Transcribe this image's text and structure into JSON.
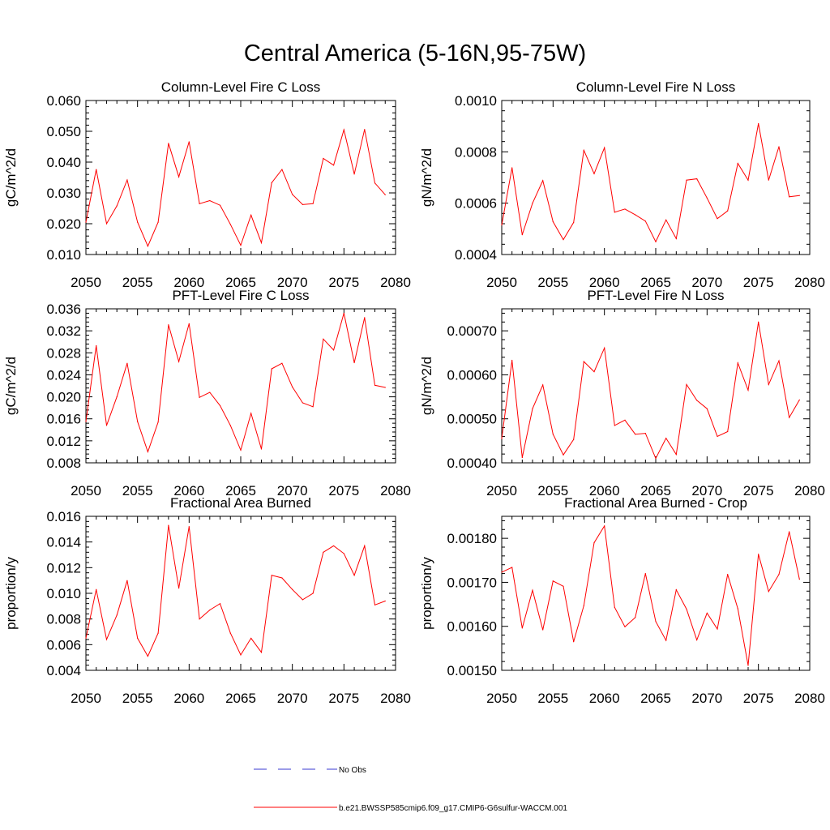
{
  "figure": {
    "title": "Central America (5-16N,95-75W)",
    "legend": [
      {
        "label": "No Obs",
        "color": "#3a3ad0",
        "style": "dashed"
      },
      {
        "label": "b.e21.BWSSP585cmip6.f09_g17.CMIP6-G6sulfur-WACCM.001",
        "color": "#ff0000",
        "style": "solid"
      }
    ]
  },
  "chart_data": [
    {
      "type": "line",
      "title": "Column-Level Fire C Loss",
      "ylabel": "gC/m^2/d",
      "xlim": [
        2050,
        2080
      ],
      "ylim": [
        0.01,
        0.06
      ],
      "xticks": [
        2050,
        2055,
        2060,
        2065,
        2070,
        2075,
        2080
      ],
      "yticks": [
        0.01,
        0.02,
        0.03,
        0.04,
        0.05,
        0.06
      ],
      "ytick_labels": [
        "0.010",
        "0.020",
        "0.030",
        "0.040",
        "0.050",
        "0.060"
      ],
      "series": [
        {
          "color": "#ff0000",
          "x": [
            2050,
            2051,
            2052,
            2053,
            2054,
            2055,
            2056,
            2057,
            2058,
            2059,
            2060,
            2061,
            2062,
            2063,
            2064,
            2065,
            2066,
            2067,
            2068,
            2069,
            2070,
            2071,
            2072,
            2073,
            2074,
            2075,
            2076,
            2077,
            2078,
            2079
          ],
          "y": [
            0.0205,
            0.0376,
            0.02,
            0.0258,
            0.0342,
            0.0205,
            0.0127,
            0.0205,
            0.0461,
            0.0352,
            0.0466,
            0.0265,
            0.0275,
            0.026,
            0.0198,
            0.013,
            0.0228,
            0.0138,
            0.0333,
            0.0376,
            0.0295,
            0.0262,
            0.0265,
            0.0412,
            0.039,
            0.0505,
            0.0361,
            0.0506,
            0.0332,
            0.0294
          ]
        }
      ]
    },
    {
      "type": "line",
      "title": "Column-Level Fire N Loss",
      "ylabel": "gN/m^2/d",
      "xlim": [
        2050,
        2080
      ],
      "ylim": [
        0.0004,
        0.001
      ],
      "xticks": [
        2050,
        2055,
        2060,
        2065,
        2070,
        2075,
        2080
      ],
      "yticks": [
        0.0004,
        0.0006,
        0.0008,
        0.001
      ],
      "ytick_labels": [
        "0.0004",
        "0.0006",
        "0.0008",
        "0.0010"
      ],
      "series": [
        {
          "color": "#ff0000",
          "x": [
            2050,
            2051,
            2052,
            2053,
            2054,
            2055,
            2056,
            2057,
            2058,
            2059,
            2060,
            2061,
            2062,
            2063,
            2064,
            2065,
            2066,
            2067,
            2068,
            2069,
            2070,
            2071,
            2072,
            2073,
            2074,
            2075,
            2076,
            2077,
            2078,
            2079
          ],
          "y": [
            0.000515,
            0.000738,
            0.000477,
            0.0006,
            0.000688,
            0.000528,
            0.000458,
            0.000525,
            0.000806,
            0.000715,
            0.000816,
            0.000565,
            0.000577,
            0.000555,
            0.00053,
            0.00045,
            0.000535,
            0.000462,
            0.00069,
            0.000695,
            0.00062,
            0.00054,
            0.00057,
            0.000755,
            0.00069,
            0.00091,
            0.00069,
            0.00082,
            0.000625,
            0.00063
          ]
        }
      ]
    },
    {
      "type": "line",
      "title": "PFT-Level Fire C Loss",
      "ylabel": "gC/m^2/d",
      "xlim": [
        2050,
        2080
      ],
      "ylim": [
        0.008,
        0.036
      ],
      "xticks": [
        2050,
        2055,
        2060,
        2065,
        2070,
        2075,
        2080
      ],
      "yticks": [
        0.008,
        0.012,
        0.016,
        0.02,
        0.024,
        0.028,
        0.032,
        0.036
      ],
      "ytick_labels": [
        "0.008",
        "0.012",
        "0.016",
        "0.020",
        "0.024",
        "0.028",
        "0.032",
        "0.036"
      ],
      "series": [
        {
          "color": "#ff0000",
          "x": [
            2050,
            2051,
            2052,
            2053,
            2054,
            2055,
            2056,
            2057,
            2058,
            2059,
            2060,
            2061,
            2062,
            2063,
            2064,
            2065,
            2066,
            2067,
            2068,
            2069,
            2070,
            2071,
            2072,
            2073,
            2074,
            2075,
            2076,
            2077,
            2078,
            2079
          ],
          "y": [
            0.0155,
            0.0293,
            0.0148,
            0.02,
            0.0261,
            0.0155,
            0.01,
            0.0154,
            0.0331,
            0.0264,
            0.0333,
            0.0199,
            0.0208,
            0.0184,
            0.0148,
            0.0103,
            0.017,
            0.0105,
            0.0251,
            0.0261,
            0.0218,
            0.0189,
            0.0182,
            0.0305,
            0.0285,
            0.0352,
            0.0262,
            0.0344,
            0.0221,
            0.0217
          ]
        }
      ]
    },
    {
      "type": "line",
      "title": "PFT-Level Fire N Loss",
      "ylabel": "gN/m^2/d",
      "xlim": [
        2050,
        2080
      ],
      "ylim": [
        0.0004,
        0.00075
      ],
      "xticks": [
        2050,
        2055,
        2060,
        2065,
        2070,
        2075,
        2080
      ],
      "yticks": [
        0.0004,
        0.0005,
        0.0006,
        0.0007
      ],
      "ytick_labels": [
        "0.00040",
        "0.00050",
        "0.00060",
        "0.00070"
      ],
      "series": [
        {
          "color": "#ff0000",
          "x": [
            2050,
            2051,
            2052,
            2053,
            2054,
            2055,
            2056,
            2057,
            2058,
            2059,
            2060,
            2061,
            2062,
            2063,
            2064,
            2065,
            2066,
            2067,
            2068,
            2069,
            2070,
            2071,
            2072,
            2073,
            2074,
            2075,
            2076,
            2077,
            2078,
            2079
          ],
          "y": [
            0.000455,
            0.000633,
            0.000412,
            0.000523,
            0.000577,
            0.000465,
            0.000418,
            0.000453,
            0.00063,
            0.000607,
            0.000661,
            0.000485,
            0.000497,
            0.000465,
            0.000467,
            0.00041,
            0.000456,
            0.000419,
            0.000578,
            0.000542,
            0.000523,
            0.00046,
            0.000471,
            0.000627,
            0.000565,
            0.00072,
            0.000578,
            0.000632,
            0.000503,
            0.000543
          ]
        }
      ]
    },
    {
      "type": "line",
      "title": "Fractional Area Burned",
      "ylabel": "proportion/y",
      "xlim": [
        2050,
        2080
      ],
      "ylim": [
        0.004,
        0.016
      ],
      "xticks": [
        2050,
        2055,
        2060,
        2065,
        2070,
        2075,
        2080
      ],
      "yticks": [
        0.004,
        0.006,
        0.008,
        0.01,
        0.012,
        0.014,
        0.016
      ],
      "ytick_labels": [
        "0.004",
        "0.006",
        "0.008",
        "0.010",
        "0.012",
        "0.014",
        "0.016"
      ],
      "series": [
        {
          "color": "#ff0000",
          "x": [
            2050,
            2051,
            2052,
            2053,
            2054,
            2055,
            2056,
            2057,
            2058,
            2059,
            2060,
            2061,
            2062,
            2063,
            2064,
            2065,
            2066,
            2067,
            2068,
            2069,
            2070,
            2071,
            2072,
            2073,
            2074,
            2075,
            2076,
            2077,
            2078,
            2079
          ],
          "y": [
            0.0065,
            0.0103,
            0.0064,
            0.0083,
            0.011,
            0.0065,
            0.0051,
            0.0069,
            0.0153,
            0.0104,
            0.0152,
            0.008,
            0.0087,
            0.0092,
            0.0069,
            0.0052,
            0.0065,
            0.0054,
            0.0114,
            0.0112,
            0.0103,
            0.0095,
            0.01,
            0.0132,
            0.0137,
            0.0131,
            0.0114,
            0.0137,
            0.0091,
            0.0094
          ]
        }
      ]
    },
    {
      "type": "line",
      "title": "Fractional Area Burned - Crop",
      "ylabel": "proportion/y",
      "xlim": [
        2050,
        2080
      ],
      "ylim": [
        0.0015,
        0.00185
      ],
      "xticks": [
        2050,
        2055,
        2060,
        2065,
        2070,
        2075,
        2080
      ],
      "yticks": [
        0.0015,
        0.0016,
        0.0017,
        0.0018
      ],
      "ytick_labels": [
        "0.00150",
        "0.00160",
        "0.00170",
        "0.00180"
      ],
      "series": [
        {
          "color": "#ff0000",
          "x": [
            2050,
            2051,
            2052,
            2053,
            2054,
            2055,
            2056,
            2057,
            2058,
            2059,
            2060,
            2061,
            2062,
            2063,
            2064,
            2065,
            2066,
            2067,
            2068,
            2069,
            2070,
            2071,
            2072,
            2073,
            2074,
            2075,
            2076,
            2077,
            2078,
            2079
          ],
          "y": [
            0.001723,
            0.001734,
            0.001596,
            0.001682,
            0.001592,
            0.001703,
            0.001691,
            0.001565,
            0.001647,
            0.00179,
            0.001828,
            0.001643,
            0.001599,
            0.00162,
            0.00172,
            0.001611,
            0.001568,
            0.001683,
            0.001639,
            0.001569,
            0.00163,
            0.001594,
            0.001718,
            0.00164,
            0.001511,
            0.001764,
            0.001679,
            0.001718,
            0.001815,
            0.001707
          ]
        }
      ]
    }
  ]
}
